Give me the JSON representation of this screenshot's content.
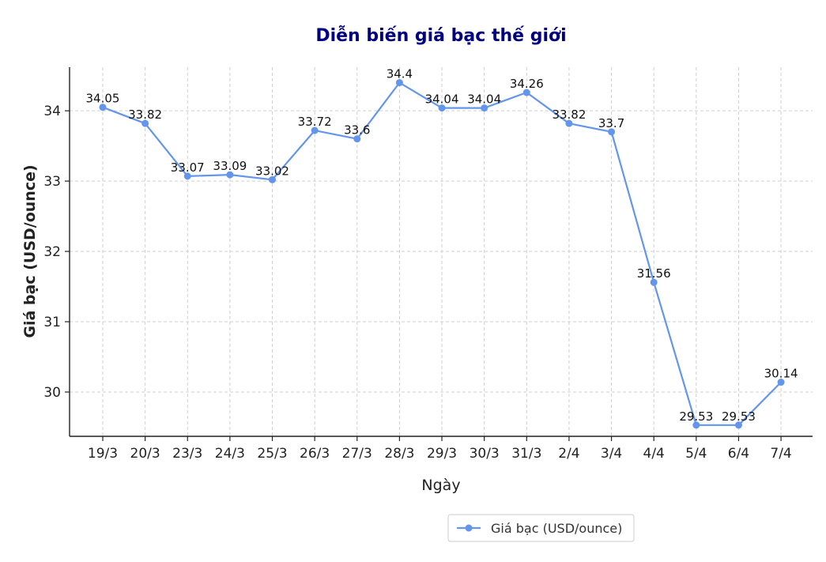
{
  "chart_data": {
    "type": "line",
    "title": "Diễn biến giá bạc thế giới",
    "xlabel": "Ngày",
    "ylabel": "Giá bạc (USD/ounce)",
    "categories": [
      "19/3",
      "20/3",
      "23/3",
      "24/3",
      "25/3",
      "26/3",
      "27/3",
      "28/3",
      "29/3",
      "30/3",
      "31/3",
      "2/4",
      "3/4",
      "4/4",
      "5/4",
      "6/4",
      "7/4"
    ],
    "series": [
      {
        "name": "Giá bạc (USD/ounce)",
        "values": [
          34.05,
          33.82,
          33.07,
          33.09,
          33.02,
          33.72,
          33.6,
          34.4,
          34.04,
          34.04,
          34.26,
          33.82,
          33.7,
          31.56,
          29.53,
          29.53,
          30.14
        ],
        "value_labels": [
          "34.05",
          "33.82",
          "33.07",
          "33.09",
          "33.02",
          "33.72",
          "33.6",
          "34.4",
          "34.04",
          "34.04",
          "34.26",
          "33.82",
          "33.7",
          "31.56",
          "29.53",
          "29.53",
          "30.14"
        ],
        "color": "#6495ED"
      }
    ],
    "yticks": [
      "30",
      "31",
      "32",
      "33",
      "34"
    ],
    "ylim": [
      29.37,
      34.62
    ],
    "grid": true,
    "legend_position": "bottom-center",
    "title_color": "#000080"
  }
}
